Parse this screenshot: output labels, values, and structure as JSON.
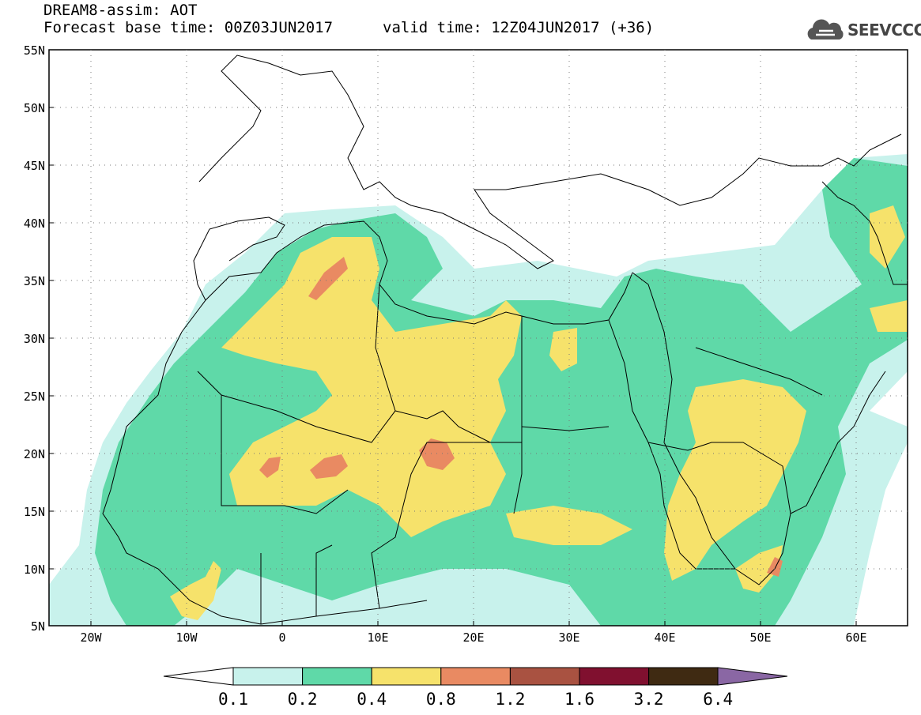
{
  "header": {
    "title": "DREAM8-assim: AOT",
    "base_time": "Forecast base time: 00Z03JUN2017",
    "valid_time": "valid time: 12Z04JUN2017 (+36)"
  },
  "logo": {
    "text": "SEEVCCC",
    "icon": "cloud-icon"
  },
  "map": {
    "lat_labels": [
      "55N",
      "50N",
      "45N",
      "40N",
      "35N",
      "30N",
      "25N",
      "20N",
      "15N",
      "10N",
      "5N"
    ],
    "lon_labels": [
      "20W",
      "10W",
      "0",
      "10E",
      "20E",
      "30E",
      "40E",
      "50E",
      "60E"
    ],
    "extent": {
      "lon_min": -25,
      "lon_max": 65,
      "lat_min": 5,
      "lat_max": 55
    },
    "field": "AOT"
  },
  "colorbar": {
    "labels": [
      "0.1",
      "0.2",
      "0.4",
      "0.8",
      "1.2",
      "1.6",
      "3.2",
      "6.4"
    ],
    "colors": [
      "#c8f2ec",
      "#5fd9a8",
      "#f6e26b",
      "#e98a62",
      "#a95241",
      "#80102f",
      "#3f2a12"
    ],
    "under_color": "#ffffff",
    "over_color": "#8a67a4"
  },
  "colors": {
    "c1": "#c8f2ec",
    "c2": "#5fd9a8",
    "c3": "#f6e26b",
    "c4": "#e98a62"
  }
}
